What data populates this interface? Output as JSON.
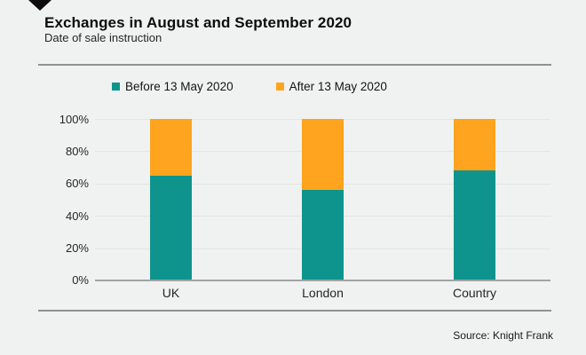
{
  "header": {
    "title": "Exchanges in August and September 2020",
    "subtitle": "Date of sale instruction"
  },
  "footer": {
    "source": "Source: Knight Frank"
  },
  "icons": {
    "brand": "diamond-icon"
  },
  "colors": {
    "background": "#eff2f0",
    "teal": "#0e948d",
    "orange": "#ffa41e",
    "gridline": "#e1e5e3",
    "axis_line": "#a2a4a3",
    "rule": "#8e9290"
  },
  "chart_data": {
    "type": "bar",
    "stacked": true,
    "percent_stacked": true,
    "title": "Exchanges in August and September 2020",
    "subtitle": "Date of sale instruction",
    "categories": [
      "UK",
      "London",
      "Country"
    ],
    "series": [
      {
        "name": "Before 13 May 2020",
        "color": "#0e948d",
        "values": [
          65,
          56,
          68
        ]
      },
      {
        "name": "After 13 May 2020",
        "color": "#ffa41e",
        "values": [
          35,
          44,
          32
        ]
      }
    ],
    "y_ticks_top_to_bottom": [
      "100%",
      "80%",
      "60%",
      "40%",
      "20%",
      "0%"
    ],
    "ylim": [
      0,
      100
    ],
    "xlabel": "",
    "ylabel": "",
    "grid": true,
    "legend_position": "top",
    "source": "Source: Knight Frank"
  }
}
